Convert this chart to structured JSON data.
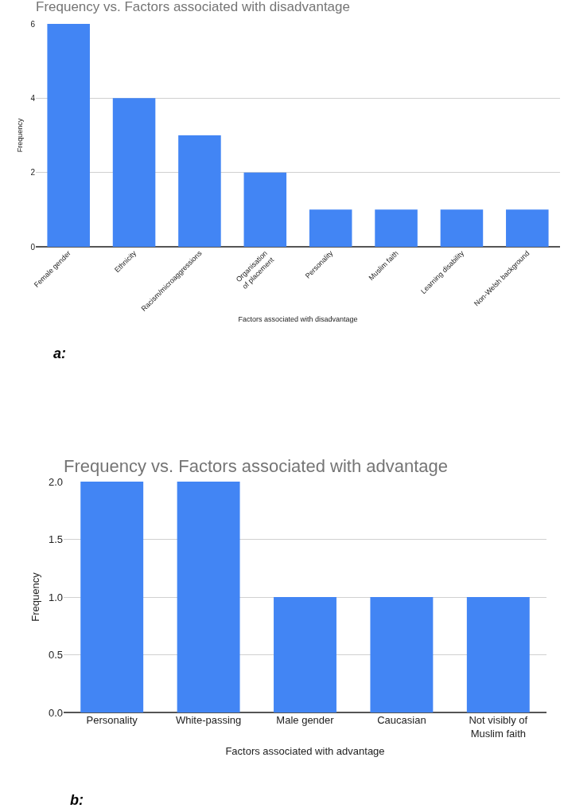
{
  "chart_data": [
    {
      "type": "bar",
      "title": "Frequency vs. Factors associated with disadvantage",
      "xlabel": "Factors associated with disadvantage",
      "ylabel": "Frequency",
      "categories": [
        "Female gender",
        "Ethnicity",
        "Racism/microaggressions",
        "Organisation of placement",
        "Personality",
        "Muslim faith",
        "Learning disability",
        "Non-Welsh background"
      ],
      "values": [
        6,
        4,
        3,
        2,
        1,
        1,
        1,
        1
      ],
      "color": "#4285f4",
      "ylim": [
        0,
        6
      ],
      "yticks": [
        0,
        2,
        4,
        6
      ],
      "grid": "y",
      "annotations": [
        "a:"
      ]
    },
    {
      "type": "bar",
      "title": "Frequency vs. Factors associated with advantage",
      "xlabel": "Factors associated with advantage",
      "ylabel": "Frequency",
      "categories": [
        "Personality",
        "White-passing",
        "Male gender",
        "Caucasian",
        "Not visibly of Muslim faith"
      ],
      "values": [
        2,
        2,
        1,
        1,
        1
      ],
      "color": "#4285f4",
      "ylim": [
        0,
        2
      ],
      "yticks": [
        {
          "value": 0,
          "label": "0.0"
        },
        {
          "value": 0.5,
          "label": "0.5"
        },
        {
          "value": 1,
          "label": "1.0"
        },
        {
          "value": 1.5,
          "label": "1.5"
        },
        {
          "value": 2,
          "label": "2.0"
        }
      ],
      "grid": "y",
      "annotations": [
        "b:"
      ]
    }
  ]
}
